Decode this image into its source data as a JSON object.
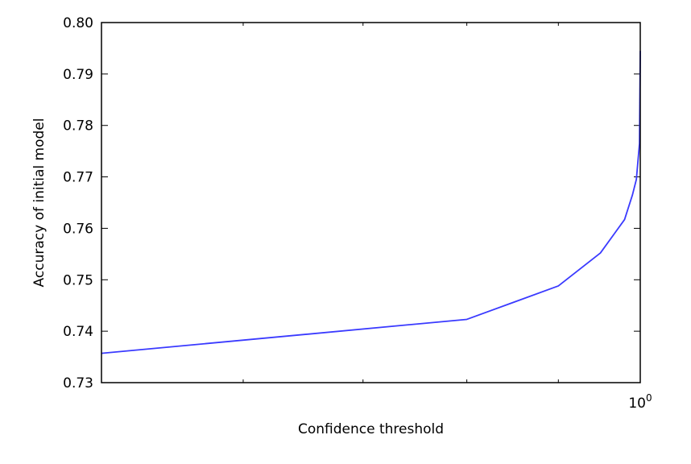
{
  "chart_data": {
    "type": "line",
    "title": "",
    "xlabel": "Confidence threshold",
    "ylabel": "Accuracy of initial model",
    "xscale": "log",
    "xlim": [
      0.5,
      1.0
    ],
    "ylim": [
      0.73,
      0.8
    ],
    "y_ticks": [
      0.73,
      0.74,
      0.75,
      0.76,
      0.77,
      0.78,
      0.79,
      0.8
    ],
    "y_tick_labels": [
      "0.73",
      "0.74",
      "0.75",
      "0.76",
      "0.77",
      "0.78",
      "0.79",
      "0.80"
    ],
    "x_major_ticks": [
      1.0
    ],
    "x_tick_labels": [
      {
        "base": "10",
        "exp": "0"
      }
    ],
    "x_minor_ticks": [
      0.6,
      0.7,
      0.8,
      0.9
    ],
    "grid": false,
    "legend": "none",
    "series": [
      {
        "color": "#3a3aff",
        "x": [
          0.5,
          0.8,
          0.9,
          0.95,
          0.98,
          0.99,
          0.995,
          0.999,
          1.0
        ],
        "y": [
          0.7357,
          0.7423,
          0.7488,
          0.7552,
          0.7617,
          0.7665,
          0.7695,
          0.7765,
          0.7945
        ]
      }
    ]
  }
}
